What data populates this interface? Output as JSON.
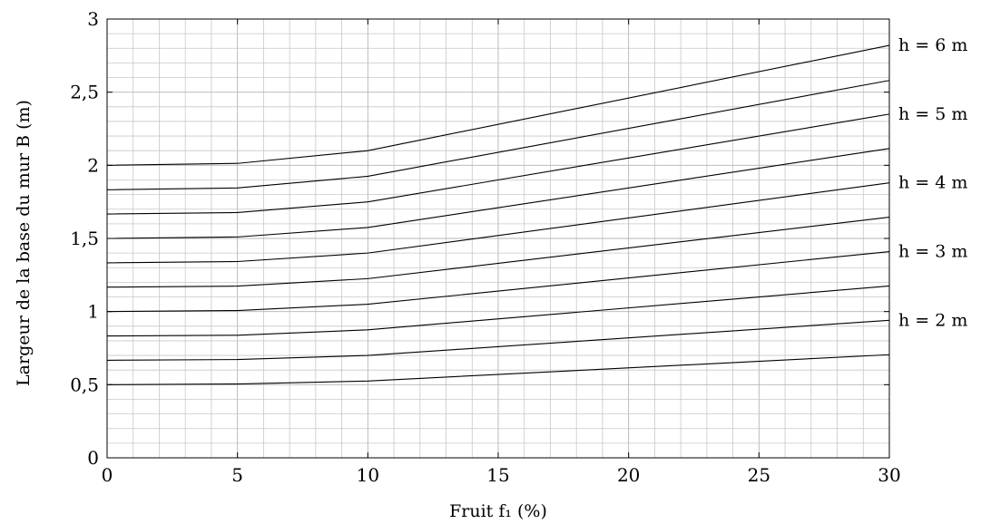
{
  "chart_data": {
    "type": "line",
    "xlabel": "Fruit f₁ (%)",
    "ylabel": "Largeur de la base du mur B (m)",
    "xlim": [
      0,
      30
    ],
    "ylim": [
      0,
      3
    ],
    "x_ticks": [
      0,
      5,
      10,
      15,
      20,
      25,
      30
    ],
    "x_tick_labels": [
      "0",
      "5",
      "10",
      "15",
      "20",
      "25",
      "30"
    ],
    "y_ticks": [
      0,
      0.5,
      1,
      1.5,
      2,
      2.5,
      3
    ],
    "y_tick_labels": [
      "0",
      "0,5",
      "1",
      "1,5",
      "2",
      "2,5",
      "3"
    ],
    "grid": true,
    "x": [
      0,
      5,
      10,
      30
    ],
    "series": [
      {
        "values": [
          0.5,
          0.505,
          0.525,
          0.705
        ]
      },
      {
        "values": [
          0.667,
          0.672,
          0.7,
          0.94
        ]
      },
      {
        "values": [
          0.833,
          0.838,
          0.875,
          1.175
        ]
      },
      {
        "values": [
          1.0,
          1.007,
          1.05,
          1.41
        ]
      },
      {
        "values": [
          1.167,
          1.174,
          1.225,
          1.645
        ]
      },
      {
        "values": [
          1.333,
          1.342,
          1.4,
          1.88
        ]
      },
      {
        "values": [
          1.5,
          1.51,
          1.575,
          2.115
        ]
      },
      {
        "values": [
          1.667,
          1.677,
          1.75,
          2.35
        ]
      },
      {
        "values": [
          1.833,
          1.845,
          1.925,
          2.58
        ]
      },
      {
        "values": [
          2.0,
          2.013,
          2.1,
          2.82
        ]
      }
    ],
    "annotations": [
      {
        "text": "h = 6 m",
        "y": 2.82
      },
      {
        "text": "h = 5 m",
        "y": 2.35
      },
      {
        "text": "h = 4 m",
        "y": 1.88
      },
      {
        "text": "h = 3 m",
        "y": 1.41
      },
      {
        "text": "h = 2 m",
        "y": 0.94
      }
    ]
  }
}
